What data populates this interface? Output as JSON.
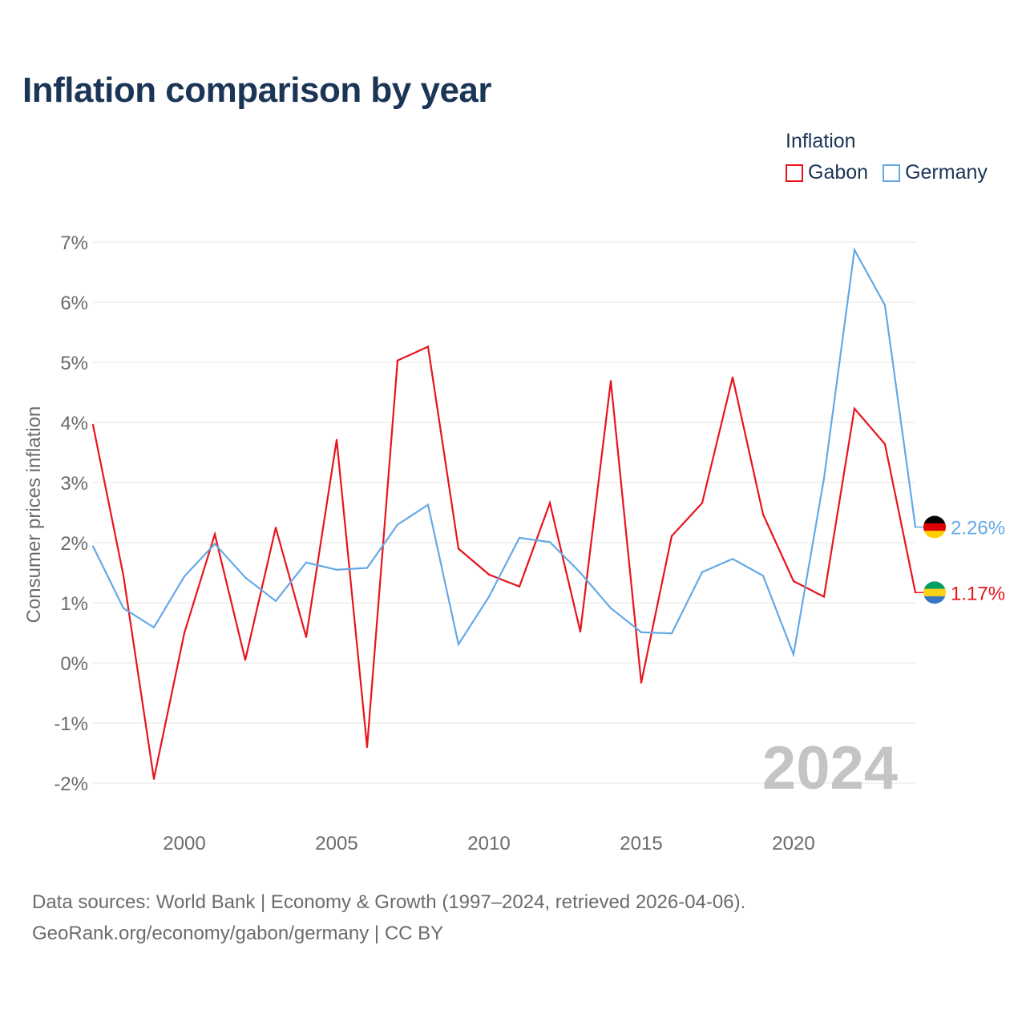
{
  "title": "Inflation comparison by year",
  "legend": {
    "title": "Inflation",
    "items": [
      {
        "name": "Gabon",
        "color": "#e8141c"
      },
      {
        "name": "Germany",
        "color": "#64a9e6"
      }
    ]
  },
  "watermark_year": "2024",
  "footer": {
    "line1": "Data sources: World Bank | Economy & Growth (1997–2024, retrieved 2026-04-06).",
    "line2": "GeoRank.org/economy/gabon/germany | CC BY"
  },
  "chart_data": {
    "type": "line",
    "title": "Inflation comparison by year",
    "xlabel": "",
    "ylabel": "Consumer prices inflation",
    "x": [
      1997,
      1998,
      1999,
      2000,
      2001,
      2002,
      2003,
      2004,
      2005,
      2006,
      2007,
      2008,
      2009,
      2010,
      2011,
      2012,
      2013,
      2014,
      2015,
      2016,
      2017,
      2018,
      2019,
      2020,
      2021,
      2022,
      2023,
      2024
    ],
    "xlim": [
      1997,
      2024
    ],
    "ylim": [
      -2,
      7
    ],
    "yticks": [
      -2,
      -1,
      0,
      1,
      2,
      3,
      4,
      5,
      6,
      7
    ],
    "ytick_labels": [
      "-2%",
      "-1%",
      "0%",
      "1%",
      "2%",
      "3%",
      "4%",
      "5%",
      "6%",
      "7%"
    ],
    "xticks": [
      2000,
      2005,
      2010,
      2015,
      2020
    ],
    "xtick_labels": [
      "2000",
      "2005",
      "2010",
      "2015",
      "2020"
    ],
    "grid": true,
    "legend_position": "top-right",
    "series": [
      {
        "name": "Gabon",
        "color": "#e8141c",
        "values": [
          3.96,
          1.45,
          -1.93,
          0.5,
          2.14,
          0.05,
          2.25,
          0.43,
          3.71,
          -1.4,
          5.03,
          5.26,
          1.9,
          1.47,
          1.27,
          2.66,
          0.52,
          4.69,
          -0.33,
          2.11,
          2.66,
          4.75,
          2.47,
          1.36,
          1.1,
          4.23,
          3.64,
          1.17
        ],
        "end_label": "1.17%"
      },
      {
        "name": "Germany",
        "color": "#64a9e6",
        "values": [
          1.94,
          0.91,
          0.59,
          1.44,
          1.98,
          1.42,
          1.03,
          1.67,
          1.55,
          1.58,
          2.3,
          2.63,
          0.31,
          1.1,
          2.08,
          2.01,
          1.5,
          0.91,
          0.51,
          0.49,
          1.51,
          1.73,
          1.45,
          0.14,
          3.07,
          6.87,
          5.95,
          2.26
        ],
        "end_label": "2.26%"
      }
    ]
  }
}
